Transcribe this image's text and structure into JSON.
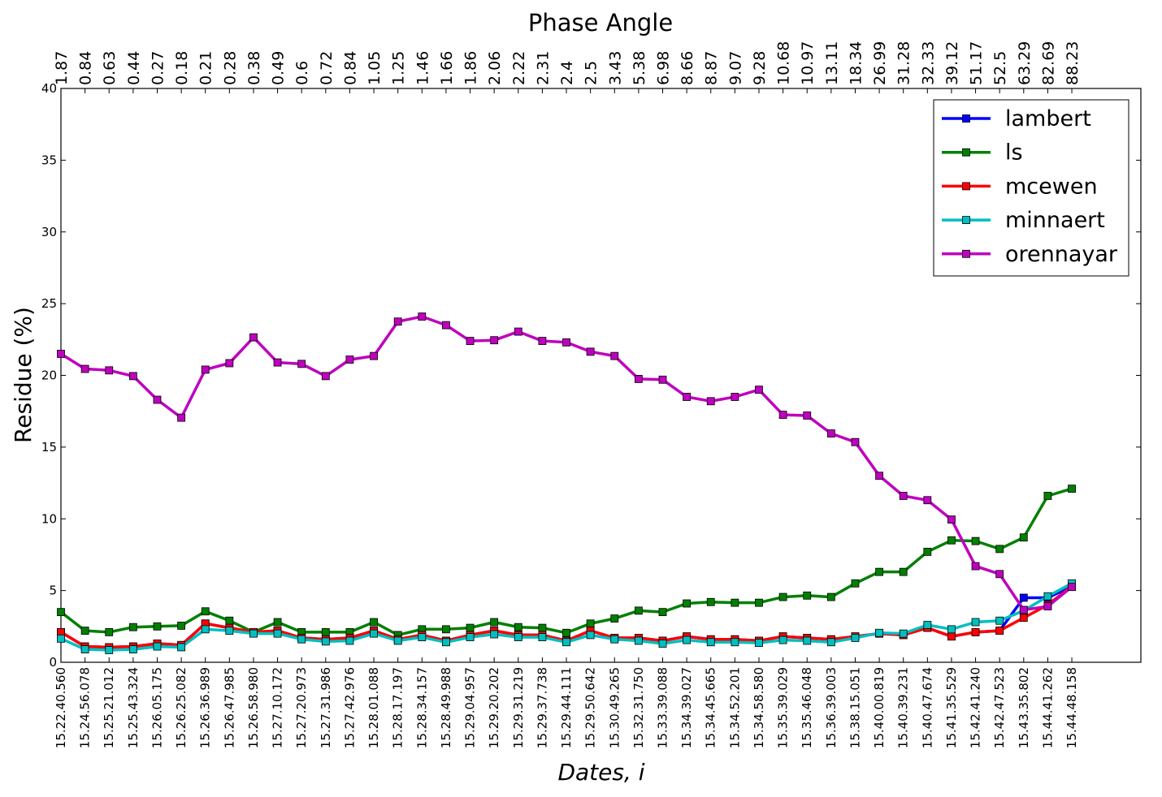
{
  "chart_data": {
    "type": "line",
    "title": "Phase Angle",
    "xlabel": "Dates, i",
    "ylabel": "Residue (%)",
    "ylim": [
      0,
      40
    ],
    "yticks": [
      "0",
      "5",
      "10",
      "15",
      "20",
      "25",
      "30",
      "35",
      "40"
    ],
    "grid": false,
    "legend_position": "top-right",
    "categories": [
      "15.22.40.560",
      "15.24.56.078",
      "15.25.21.012",
      "15.25.43.324",
      "15.26.05.175",
      "15.26.25.082",
      "15.26.36.989",
      "15.26.47.985",
      "15.26.58.980",
      "15.27.10.172",
      "15.27.20.973",
      "15.27.31.986",
      "15.27.42.976",
      "15.28.01.088",
      "15.28.17.197",
      "15.28.34.157",
      "15.28.49.988",
      "15.29.04.957",
      "15.29.20.202",
      "15.29.31.219",
      "15.29.37.738",
      "15.29.44.111",
      "15.29.50.642",
      "15.30.49.265",
      "15.32.31.750",
      "15.33.39.088",
      "15.34.39.027",
      "15.34.45.665",
      "15.34.52.201",
      "15.34.58.580",
      "15.35.39.029",
      "15.35.46.048",
      "15.36.39.003",
      "15.38.15.051",
      "15.40.00.819",
      "15.40.39.231",
      "15.40.47.674",
      "15.41.35.529",
      "15.42.41.240",
      "15.42.47.523",
      "15.43.35.802",
      "15.44.41.262",
      "15.44.48.158"
    ],
    "phase_angles": [
      "1.87",
      "0.84",
      "0.63",
      "0.44",
      "0.27",
      "0.18",
      "0.21",
      "0.28",
      "0.38",
      "0.49",
      "0.6",
      "0.72",
      "0.84",
      "1.05",
      "1.25",
      "1.46",
      "1.66",
      "1.86",
      "2.06",
      "2.22",
      "2.31",
      "2.4",
      "2.5",
      "3.43",
      "5.38",
      "6.98",
      "8.66",
      "8.87",
      "9.07",
      "9.28",
      "10.68",
      "10.97",
      "13.11",
      "18.34",
      "26.99",
      "31.28",
      "32.33",
      "39.12",
      "51.17",
      "52.5",
      "63.29",
      "82.69",
      "88.23"
    ],
    "series": [
      {
        "name": "lambert",
        "color": "#0000ff",
        "values": [
          2.1,
          1.1,
          1.05,
          1.1,
          1.3,
          1.2,
          2.7,
          2.4,
          2.1,
          2.2,
          1.7,
          1.6,
          1.7,
          2.2,
          1.6,
          1.9,
          1.5,
          1.9,
          2.2,
          1.9,
          1.9,
          1.5,
          2.2,
          1.7,
          1.7,
          1.5,
          1.8,
          1.6,
          1.6,
          1.5,
          1.8,
          1.7,
          1.6,
          1.8,
          2.0,
          1.9,
          2.4,
          1.8,
          2.1,
          2.2,
          4.5,
          4.5,
          5.3
        ]
      },
      {
        "name": "ls",
        "color": "#008000",
        "values": [
          3.5,
          2.2,
          2.1,
          2.45,
          2.5,
          2.55,
          3.55,
          2.9,
          2.1,
          2.8,
          2.1,
          2.1,
          2.1,
          2.8,
          1.9,
          2.3,
          2.3,
          2.4,
          2.8,
          2.45,
          2.4,
          2.05,
          2.7,
          3.05,
          3.6,
          3.5,
          4.1,
          4.2,
          4.15,
          4.15,
          4.55,
          4.65,
          4.55,
          5.5,
          6.3,
          6.3,
          7.7,
          8.5,
          8.45,
          7.9,
          8.7,
          11.6,
          12.1
        ]
      },
      {
        "name": "mcewen",
        "color": "#ff0000",
        "values": [
          2.1,
          1.1,
          1.05,
          1.1,
          1.3,
          1.2,
          2.7,
          2.4,
          2.1,
          2.2,
          1.7,
          1.6,
          1.7,
          2.2,
          1.6,
          1.9,
          1.5,
          1.9,
          2.2,
          1.9,
          1.9,
          1.5,
          2.2,
          1.7,
          1.7,
          1.5,
          1.8,
          1.6,
          1.6,
          1.5,
          1.8,
          1.7,
          1.6,
          1.8,
          2.0,
          1.9,
          2.4,
          1.8,
          2.1,
          2.2,
          3.1,
          4.0,
          5.3
        ]
      },
      {
        "name": "minnaert",
        "color": "#00bfbf",
        "values": [
          1.65,
          0.9,
          0.85,
          0.9,
          1.1,
          1.05,
          2.3,
          2.2,
          2.0,
          2.0,
          1.6,
          1.45,
          1.5,
          2.0,
          1.5,
          1.75,
          1.4,
          1.75,
          1.95,
          1.75,
          1.75,
          1.4,
          1.9,
          1.6,
          1.5,
          1.3,
          1.55,
          1.4,
          1.4,
          1.35,
          1.55,
          1.5,
          1.4,
          1.7,
          2.05,
          2.0,
          2.6,
          2.3,
          2.8,
          2.9,
          3.6,
          4.6,
          5.5
        ]
      },
      {
        "name": "orennayar",
        "color": "#bf00bf",
        "values": [
          21.5,
          20.45,
          20.35,
          19.95,
          18.3,
          17.05,
          20.4,
          20.85,
          22.65,
          20.9,
          20.8,
          19.95,
          21.1,
          21.35,
          23.75,
          24.1,
          23.5,
          22.4,
          22.45,
          23.05,
          22.4,
          22.3,
          21.65,
          21.35,
          19.75,
          19.7,
          18.5,
          18.2,
          18.5,
          19.0,
          17.25,
          17.2,
          15.95,
          15.35,
          13.0,
          11.6,
          11.3,
          9.95,
          6.7,
          6.15,
          3.65,
          3.9,
          5.25
        ]
      }
    ]
  }
}
